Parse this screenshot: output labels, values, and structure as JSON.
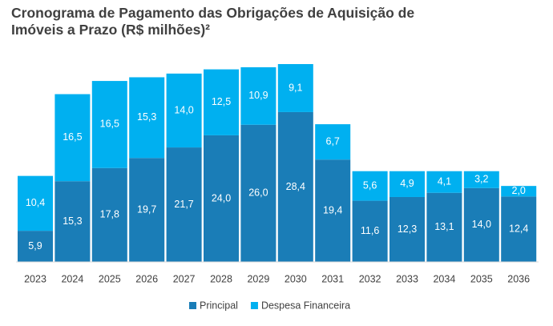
{
  "chart_data": {
    "type": "stacked_bar",
    "title": "Cronograma de Pagamento das Obrigações de Aquisição de Imóveis a Prazo (R$ milhões)²",
    "categories": [
      "2023",
      "2024",
      "2025",
      "2026",
      "2027",
      "2028",
      "2029",
      "2030",
      "2031",
      "2032",
      "2033",
      "2034",
      "2035",
      "2036"
    ],
    "series": [
      {
        "name": "Principal",
        "color": "#1a7db7",
        "values": [
          5.9,
          15.3,
          17.8,
          19.7,
          21.7,
          24.0,
          26.0,
          28.4,
          19.4,
          11.6,
          12.3,
          13.1,
          14.0,
          12.4
        ],
        "value_labels": [
          "5,9",
          "15,3",
          "17,8",
          "19,7",
          "21,7",
          "24,0",
          "26,0",
          "28,4",
          "19,4",
          "11,6",
          "12,3",
          "13,1",
          "14,0",
          "12,4"
        ]
      },
      {
        "name": "Despesa Financeira",
        "color": "#00b0f0",
        "values": [
          10.4,
          16.5,
          16.5,
          15.3,
          14.0,
          12.5,
          10.9,
          9.1,
          6.7,
          5.6,
          4.9,
          4.1,
          3.2,
          2.0
        ],
        "value_labels": [
          "10,4",
          "16,5",
          "16,5",
          "15,3",
          "14,0",
          "12,5",
          "10,9",
          "9,1",
          "6,7",
          "5,6",
          "4,9",
          "4,1",
          "3,2",
          "2,0"
        ]
      }
    ]
  }
}
